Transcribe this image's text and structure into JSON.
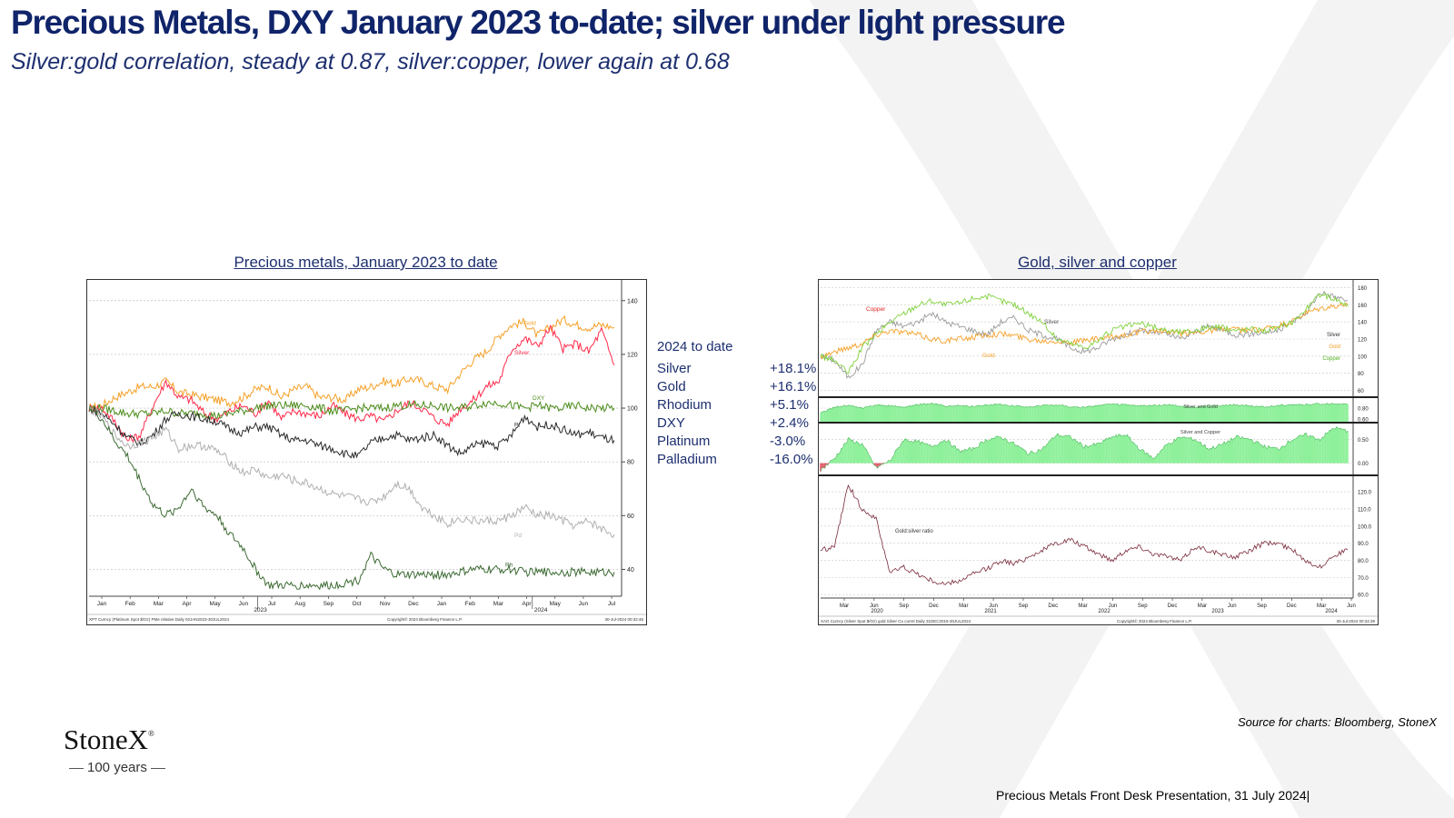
{
  "title": "Precious Metals, DXY January 2023 to-date; silver under light pressure",
  "subtitle": "Silver:gold correlation, steady at 0.87, silver:copper, lower again at 0.68",
  "source": "Source for charts: Bloomberg, StoneX",
  "footer": "Precious Metals Front Desk Presentation, 31 July 2024|",
  "logo": {
    "name": "StoneX",
    "mark": "®",
    "tagline": "100 years"
  },
  "ytd_table": {
    "heading": "2024 to date",
    "rows": [
      {
        "name": "Silver",
        "value": "+18.1%"
      },
      {
        "name": "Gold",
        "value": "+16.1%"
      },
      {
        "name": "Rhodium",
        "value": "+5.1%"
      },
      {
        "name": "DXY",
        "value": "+2.4%"
      },
      {
        "name": "Platinum",
        "value": "-3.0%"
      },
      {
        "name": "Palladium",
        "value": "-16.0%"
      }
    ]
  },
  "colors": {
    "title": "#10246a",
    "gold": "#f5a027",
    "silver": "#ff2a4a",
    "dxy": "#4c8c1a",
    "pt": "#2a2a2a",
    "pd": "#b0b0b0",
    "rh": "#3d6b34",
    "copper": "#7fd13c",
    "fill": "#8ef09a"
  },
  "chart_data": [
    {
      "type": "line",
      "caption": "Precious metals, January 2023 to date",
      "ylim": [
        30,
        145
      ],
      "yticks": [
        40,
        60,
        80,
        100,
        120,
        140
      ],
      "x_month_labels": [
        "Jan",
        "Feb",
        "Mar",
        "Apr",
        "May",
        "Jun",
        "Jul",
        "Aug",
        "Sep",
        "Oct",
        "Nov",
        "Dec",
        "Jan",
        "Feb",
        "Mar",
        "Apr",
        "May",
        "Jun",
        "Jul"
      ],
      "x_year_labels": [
        "2023",
        "2024"
      ],
      "footer_left": "XPT Curncy (Platinum Spot $/Oz) PMe relative  Daily 02JAN2023-30JUL2024",
      "footer_mid": "Copyright© 2024 Bloomberg Finance L.P.",
      "footer_right": "30-Jul-2024 00:32:46",
      "grid": true,
      "series": [
        {
          "name": "Gold",
          "color": "#f5a027",
          "values": [
            100,
            101,
            104,
            106,
            108,
            108,
            110,
            106,
            105,
            104,
            103,
            102,
            104,
            107,
            108,
            104,
            107,
            108,
            104,
            104,
            103,
            107,
            108,
            110,
            109,
            111,
            110,
            108,
            107,
            113,
            118,
            121,
            127,
            131,
            132,
            127,
            130,
            133,
            131,
            130,
            131,
            130
          ]
        },
        {
          "name": "Silver",
          "color": "#ff2a4a",
          "values": [
            100,
            100,
            95,
            88,
            90,
            101,
            110,
            104,
            103,
            98,
            96,
            99,
            101,
            98,
            103,
            96,
            99,
            98,
            97,
            101,
            98,
            96,
            97,
            95,
            99,
            102,
            100,
            96,
            94,
            100,
            103,
            108,
            110,
            122,
            126,
            123,
            130,
            122,
            124,
            121,
            129,
            116
          ]
        },
        {
          "name": "DXY",
          "color": "#4c8c1a",
          "values": [
            100,
            100,
            99,
            98,
            98,
            98,
            99,
            98,
            98,
            98,
            97,
            98,
            99,
            100,
            101,
            101,
            101,
            101,
            100,
            99,
            99,
            100,
            100,
            100,
            101,
            101,
            101,
            101,
            100,
            100,
            101,
            102,
            102,
            101,
            100,
            101,
            100,
            100,
            101,
            100,
            100,
            100
          ]
        },
        {
          "name": "Pt",
          "color": "#2a2a2a",
          "values": [
            100,
            98,
            94,
            89,
            87,
            90,
            96,
            98,
            97,
            96,
            95,
            92,
            91,
            93,
            93,
            90,
            88,
            88,
            86,
            85,
            83,
            82,
            87,
            89,
            90,
            88,
            89,
            90,
            86,
            83,
            86,
            87,
            86,
            90,
            97,
            93,
            94,
            92,
            90,
            91,
            89,
            88
          ]
        },
        {
          "name": "Pd",
          "color": "#b0b0b0",
          "values": [
            100,
            97,
            90,
            86,
            87,
            89,
            92,
            85,
            86,
            86,
            84,
            80,
            76,
            77,
            74,
            75,
            73,
            72,
            70,
            68,
            67,
            66,
            65,
            67,
            72,
            70,
            63,
            60,
            57,
            59,
            58,
            58,
            58,
            60,
            63,
            60,
            60,
            58,
            56,
            58,
            55,
            53
          ]
        },
        {
          "name": "Rh",
          "color": "#3d6b34",
          "values": [
            100,
            96,
            88,
            82,
            73,
            64,
            60,
            63,
            70,
            63,
            60,
            53,
            48,
            40,
            34,
            34,
            34,
            34,
            34,
            34,
            35,
            36,
            45,
            40,
            38,
            38,
            38,
            38,
            38,
            39,
            40,
            40,
            40,
            40,
            39,
            39,
            39,
            39,
            39,
            39,
            39,
            39
          ]
        }
      ]
    },
    {
      "type": "line",
      "caption": "Gold, silver and copper",
      "x_month_labels": [
        "Mar",
        "Jun",
        "Sep",
        "Dec",
        "Mar",
        "Jun",
        "Sep",
        "Dec",
        "Mar",
        "Jun",
        "Sep",
        "Dec",
        "Mar",
        "Jun",
        "Sep",
        "Dec",
        "Mar",
        "Jun"
      ],
      "x_year_labels": [
        "2020",
        "2021",
        "2022",
        "2023",
        "2024"
      ],
      "footer_left": "XAG Curncy (Silver Spot $/Oz) gold Silver Cu correl  Daily 31DEC2019-30JUL2024",
      "footer_mid": "Copyright© 2024 Bloomberg Finance L.P.",
      "footer_right": "30-Jul-2024 00:34:39",
      "panels": [
        {
          "name": "Price index",
          "ylim": [
            55,
            185
          ],
          "yticks": [
            60,
            80,
            100,
            120,
            140,
            160,
            180
          ],
          "series": [
            {
              "name": "Silver",
              "color": "#9a9a9a",
              "values": [
                100,
                95,
                75,
                90,
                130,
                140,
                135,
                140,
                150,
                140,
                135,
                130,
                125,
                140,
                145,
                130,
                125,
                120,
                110,
                105,
                110,
                120,
                125,
                130,
                128,
                125,
                120,
                128,
                135,
                130,
                125,
                126,
                128,
                130,
                140,
                150,
                175,
                170,
                165
              ]
            },
            {
              "name": "Gold",
              "color": "#f5a027",
              "values": [
                100,
                105,
                110,
                115,
                125,
                130,
                128,
                125,
                120,
                118,
                120,
                122,
                125,
                126,
                124,
                120,
                118,
                118,
                116,
                118,
                120,
                122,
                125,
                128,
                130,
                128,
                126,
                128,
                130,
                132,
                131,
                130,
                132,
                135,
                140,
                150,
                155,
                158,
                160
              ]
            },
            {
              "name": "Copper",
              "color": "#7fd13c",
              "values": [
                100,
                95,
                80,
                110,
                125,
                140,
                150,
                160,
                165,
                160,
                162,
                168,
                170,
                165,
                160,
                150,
                140,
                120,
                115,
                110,
                118,
                130,
                135,
                138,
                134,
                130,
                128,
                130,
                134,
                133,
                130,
                132,
                130,
                133,
                140,
                155,
                172,
                168,
                160
              ]
            }
          ]
        },
        {
          "name": "Silver and Gold",
          "ylim": [
            0.55,
            0.95
          ],
          "yticks": [
            0.6,
            0.8
          ],
          "values": [
            0.7,
            0.82,
            0.85,
            0.8,
            0.86,
            0.84,
            0.82,
            0.86,
            0.88,
            0.84,
            0.85,
            0.83,
            0.86,
            0.87,
            0.84,
            0.82,
            0.85,
            0.86,
            0.83,
            0.81,
            0.85,
            0.87,
            0.86,
            0.84,
            0.85,
            0.86,
            0.83,
            0.82,
            0.84,
            0.85,
            0.86,
            0.84,
            0.82,
            0.85,
            0.87,
            0.86,
            0.88,
            0.87,
            0.87
          ]
        },
        {
          "name": "Silver and Copper",
          "ylim": [
            -0.2,
            0.8
          ],
          "yticks": [
            0,
            0.5
          ],
          "values": [
            -0.15,
            0.1,
            0.5,
            0.4,
            -0.1,
            0.05,
            0.5,
            0.45,
            0.35,
            0.5,
            0.25,
            0.3,
            0.5,
            0.55,
            0.4,
            0.2,
            0.3,
            0.6,
            0.55,
            0.35,
            0.4,
            0.55,
            0.6,
            0.3,
            0.1,
            0.4,
            0.55,
            0.5,
            0.3,
            0.4,
            0.55,
            0.5,
            0.35,
            0.3,
            0.5,
            0.6,
            0.5,
            0.75,
            0.68
          ]
        },
        {
          "name": "Gold:silver ratio",
          "ylim": [
            58,
            128
          ],
          "yticks": [
            60,
            70,
            80,
            90,
            100,
            110,
            120
          ],
          "values": [
            86,
            88,
            124,
            110,
            104,
            73,
            76,
            72,
            68,
            66,
            68,
            72,
            75,
            80,
            78,
            82,
            86,
            90,
            92,
            88,
            84,
            80,
            86,
            88,
            84,
            82,
            80,
            88,
            86,
            83,
            82,
            86,
            90,
            90,
            86,
            80,
            76,
            83,
            86
          ]
        }
      ]
    }
  ]
}
